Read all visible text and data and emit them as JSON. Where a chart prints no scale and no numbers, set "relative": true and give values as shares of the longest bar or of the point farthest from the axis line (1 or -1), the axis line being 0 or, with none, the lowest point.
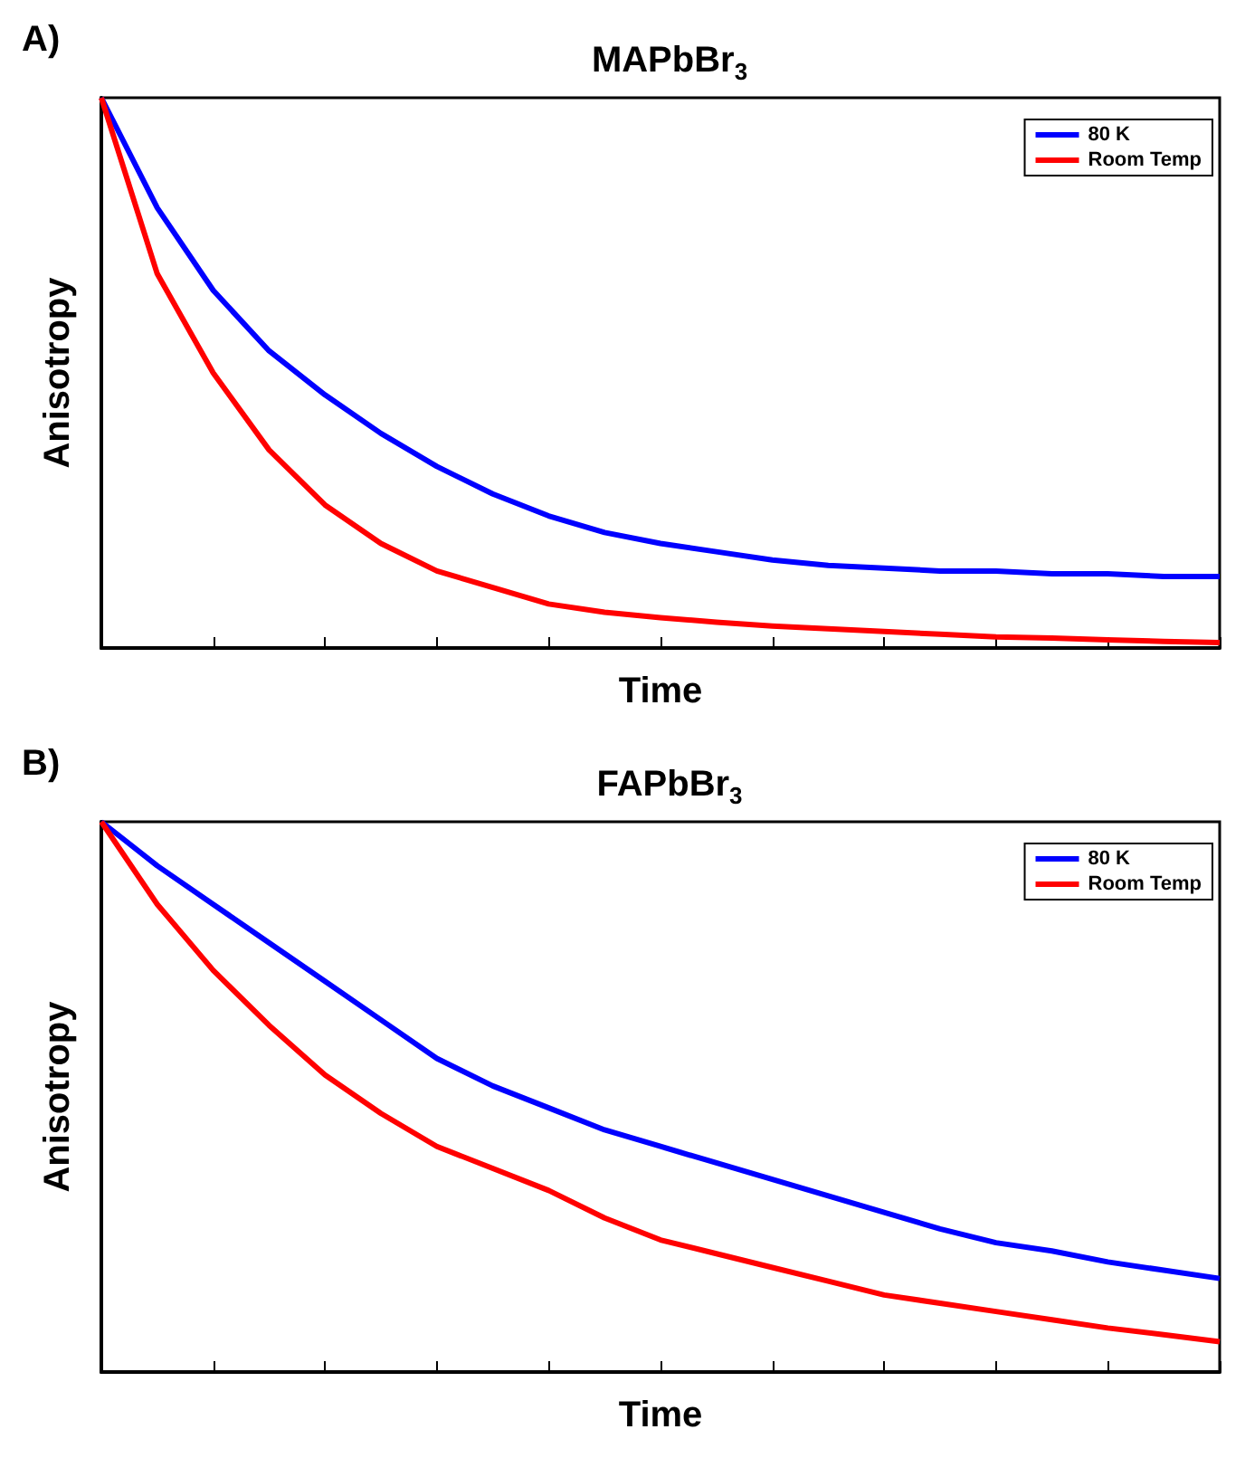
{
  "chart_data": [
    {
      "type": "line",
      "title": "MAPbBr$_{3}$",
      "annotations": [
        "A)"
      ],
      "xlabel": "Time",
      "ylabel": "Anisotropy",
      "relative": true,
      "legend": "top right",
      "categories": [
        null,
        null,
        null,
        null,
        null,
        null,
        null,
        null,
        null,
        null,
        null,
        null,
        null,
        null,
        null,
        null,
        null,
        null,
        null,
        null,
        null
      ],
      "series": [
        {
          "name": "80 K",
          "color": "#0000ff",
          "values": [
            1,
            0.8,
            0.65,
            0.54,
            0.46,
            0.39,
            0.33,
            0.28,
            0.24,
            0.21,
            0.19,
            0.175,
            0.16,
            0.15,
            0.145,
            0.14,
            0.14,
            0.135,
            0.135,
            0.13,
            0.13
          ]
        },
        {
          "name": "Room Temp",
          "color": "#ff0000",
          "values": [
            1,
            0.68,
            0.5,
            0.36,
            0.26,
            0.19,
            0.14,
            0.11,
            0.08,
            0.065,
            0.055,
            0.047,
            0.04,
            0.035,
            0.03,
            0.025,
            0.02,
            0.018,
            0.015,
            0.012,
            0.01
          ]
        }
      ]
    },
    {
      "type": "line",
      "title": "FAPbBr$_{3}$",
      "annotations": [
        "B)"
      ],
      "xlabel": "Time",
      "ylabel": "Anisotropy",
      "relative": true,
      "legend": "top right",
      "categories": [
        null,
        null,
        null,
        null,
        null,
        null,
        null,
        null,
        null,
        null,
        null,
        null,
        null,
        null,
        null,
        null,
        null,
        null,
        null,
        null,
        null
      ],
      "series": [
        {
          "name": "80 K",
          "color": "#0000ff",
          "values": [
            1,
            0.92,
            0.85,
            0.78,
            0.71,
            0.64,
            0.57,
            0.52,
            0.48,
            0.44,
            0.41,
            0.38,
            0.35,
            0.32,
            0.29,
            0.26,
            0.235,
            0.22,
            0.2,
            0.185,
            0.17
          ]
        },
        {
          "name": "Room Temp",
          "color": "#ff0000",
          "values": [
            1,
            0.85,
            0.73,
            0.63,
            0.54,
            0.47,
            0.41,
            0.37,
            0.33,
            0.28,
            0.24,
            0.215,
            0.19,
            0.165,
            0.14,
            0.125,
            0.11,
            0.095,
            0.08,
            0.068,
            0.055
          ]
        }
      ]
    }
  ]
}
